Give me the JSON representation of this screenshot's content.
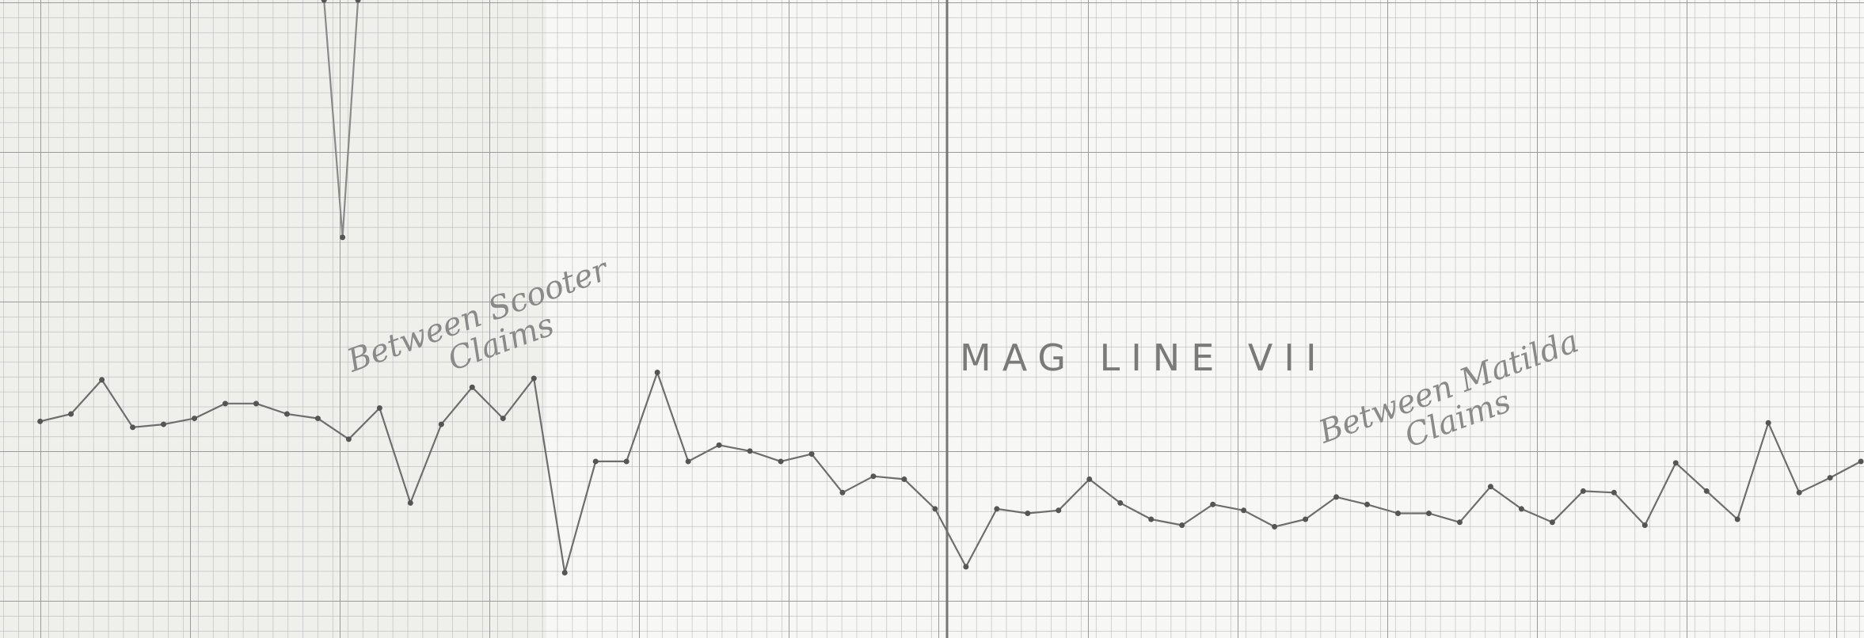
{
  "chart_data": {
    "type": "line",
    "annotations": [
      "Between Scooter",
      "Claims",
      "MAG LINE VII",
      "Between Matilda",
      "Claims"
    ],
    "xlim": [
      -1.3,
      59.1
    ],
    "ylim": [
      0,
      43
    ],
    "grid": true,
    "series": [
      {
        "color": "#6e6e6e",
        "values": [
          14.6,
          15.1,
          17.4,
          14.2,
          14.4,
          14.8,
          15.8,
          15.8,
          15.1,
          14.8,
          13.4,
          15.5,
          9.1,
          14.4,
          16.9,
          14.8,
          17.5,
          4.4,
          11.9,
          11.9,
          17.9,
          11.9,
          13.0,
          12.6,
          11.9,
          12.4,
          9.8,
          10.9,
          10.7,
          8.7,
          4.8,
          8.7,
          8.4,
          8.6,
          10.7,
          9.1,
          8.0,
          7.6,
          9.0,
          8.6,
          7.5,
          8.0,
          9.5,
          9.0,
          8.4,
          8.4,
          7.8,
          10.2,
          8.7,
          7.8,
          9.9,
          9.8,
          7.6,
          11.8,
          9.9,
          8.0,
          14.5,
          9.8,
          10.8,
          11.9
        ]
      },
      {
        "color": "#8a8a8a",
        "x": [
          9.2,
          9.8,
          10.3
        ],
        "values": [
          43,
          27,
          43
        ]
      }
    ]
  }
}
